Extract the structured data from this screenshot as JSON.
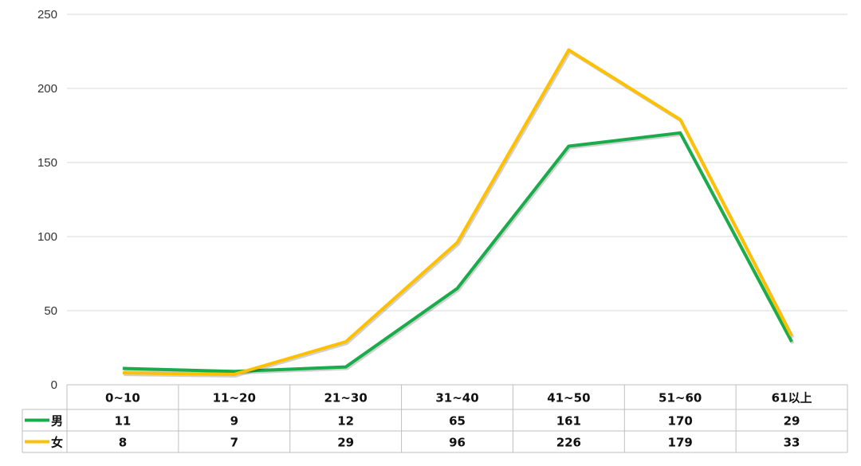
{
  "chart_data": {
    "type": "line",
    "categories": [
      "0~10",
      "11~20",
      "21~30",
      "31~40",
      "41~50",
      "51~60",
      "61以上"
    ],
    "series": [
      {
        "name": "男",
        "color": "#1aab4b",
        "values": [
          11,
          9,
          12,
          65,
          161,
          170,
          29
        ]
      },
      {
        "name": "女",
        "color": "#ffc000",
        "values": [
          8,
          7,
          29,
          96,
          226,
          179,
          33
        ]
      }
    ],
    "y_ticks": [
      0,
      50,
      100,
      150,
      200,
      250
    ],
    "ylim": [
      0,
      250
    ],
    "grid": true,
    "legend": "data-table"
  }
}
